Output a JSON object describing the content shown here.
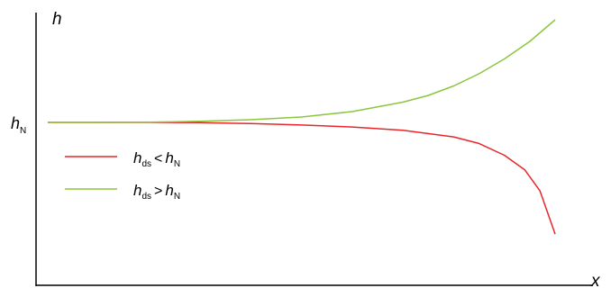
{
  "chart_data": {
    "type": "line",
    "xlabel": "x",
    "ylabel": "h",
    "y_tick": {
      "main": "h",
      "sub": "N"
    },
    "reference_value": 0,
    "xlim": [
      0,
      1
    ],
    "ylim": [
      -1,
      1
    ],
    "series": [
      {
        "legend": {
          "a_main": "h",
          "a_sub": "ds",
          "op": "<",
          "b_main": "h",
          "b_sub": "N"
        },
        "color": "#e8262a",
        "x": [
          0,
          0.1,
          0.2,
          0.3,
          0.4,
          0.5,
          0.6,
          0.7,
          0.8,
          0.85,
          0.9,
          0.94,
          0.97,
          1.0
        ],
        "y": [
          0,
          0,
          0,
          -0.002,
          -0.008,
          -0.02,
          -0.035,
          -0.06,
          -0.11,
          -0.16,
          -0.25,
          -0.36,
          -0.52,
          -0.85
        ]
      },
      {
        "legend": {
          "a_main": "h",
          "a_sub": "ds",
          "op": ">",
          "b_main": "h",
          "b_sub": "N"
        },
        "color": "#8cc63f",
        "x": [
          0,
          0.1,
          0.2,
          0.3,
          0.4,
          0.5,
          0.6,
          0.7,
          0.75,
          0.8,
          0.85,
          0.9,
          0.95,
          1.0
        ],
        "y": [
          0,
          0,
          0.002,
          0.008,
          0.02,
          0.04,
          0.08,
          0.15,
          0.2,
          0.27,
          0.36,
          0.47,
          0.6,
          0.76
        ]
      }
    ]
  }
}
